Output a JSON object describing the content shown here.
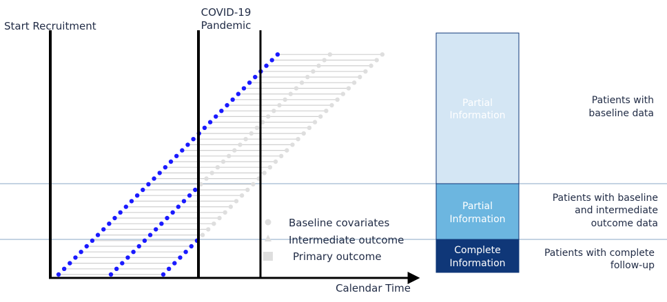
{
  "labels": {
    "start_recruitment": "Start Recruitment",
    "covid_line1": "COVID-19",
    "covid_line2": "Pandemic",
    "calendar_time": "Calendar Time"
  },
  "legend": {
    "baseline": "Baseline covariates",
    "intermediate": "Intermediate outcome",
    "primary": "Primary outcome"
  },
  "bar": {
    "top_line1": "Partial",
    "top_line2": "Information",
    "middle_line1": "Partial",
    "middle_line2": "Information",
    "bottom_line1": "Complete",
    "bottom_line2": "Information"
  },
  "side_labels": {
    "top_line1": "Patients with",
    "top_line2": "baseline data",
    "middle_line1": "Patients with baseline",
    "middle_line2": "and intermediate",
    "middle_line3": "outcome data",
    "bottom_line1": "Patients with complete",
    "bottom_line2": "follow-up"
  },
  "colors": {
    "blue_marker": "#1a1aff",
    "light_marker": "#dedede",
    "follow_up_line": "#cfcfcf",
    "bar_top": "#d4e6f4",
    "bar_middle": "#6cb6e0",
    "bar_bottom": "#0f3778",
    "divider": "#8aa7c4"
  },
  "diagram": {
    "patients": 40
  }
}
